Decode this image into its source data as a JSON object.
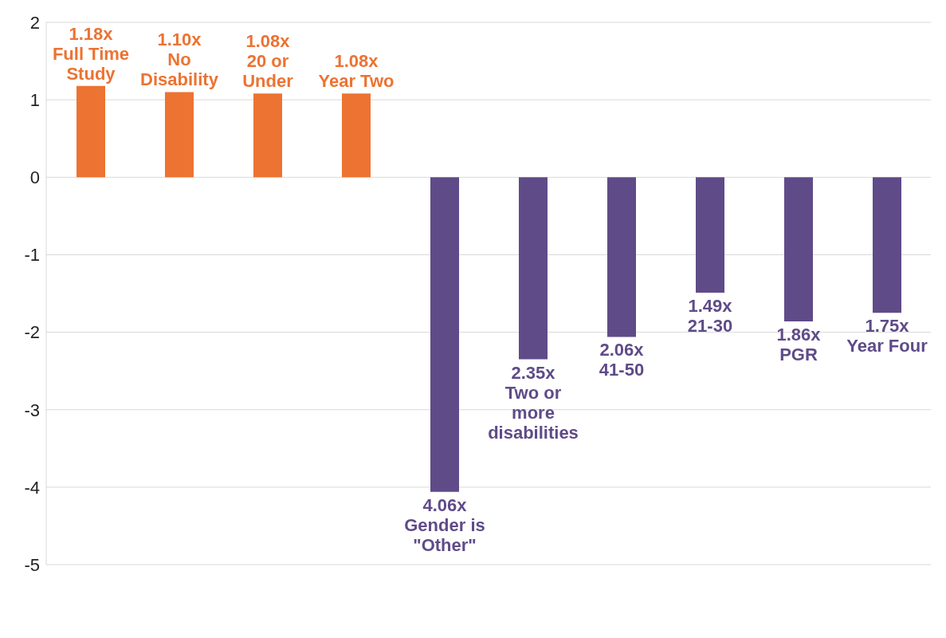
{
  "chart_data": {
    "type": "bar",
    "categories": [
      "Full Time Study",
      "No Disability",
      "20 or Under",
      "Year Two",
      "Gender is \"Other\"",
      "Two or more disabilities",
      "41-50",
      "21-30",
      "PGR",
      "Year Four"
    ],
    "values": [
      1.18,
      1.1,
      1.08,
      1.08,
      -4.06,
      -2.35,
      -2.06,
      -1.49,
      -1.86,
      -1.75
    ],
    "colors": [
      "#ec7332",
      "#ec7332",
      "#ec7332",
      "#ec7332",
      "#5f4b88",
      "#5f4b88",
      "#5f4b88",
      "#5f4b88",
      "#5f4b88",
      "#5f4b88"
    ],
    "annotations": [
      {
        "text": "1.18x",
        "x": "Full Time Study",
        "y": 1.18
      },
      {
        "text": "1.10x",
        "x": "No Disability",
        "y": 1.1
      },
      {
        "text": "1.08x",
        "x": "20 or Under",
        "y": 1.08
      },
      {
        "text": "1.08x",
        "x": "Year Two",
        "y": 1.08
      },
      {
        "text": "4.06x",
        "x": "Gender is \"Other\"",
        "y": -4.06
      },
      {
        "text": "2.35x",
        "x": "Two or more disabilities",
        "y": -2.35
      },
      {
        "text": "2.06x",
        "x": "41-50",
        "y": -2.06
      },
      {
        "text": "1.49x",
        "x": "21-30",
        "y": -1.49
      },
      {
        "text": "1.86x",
        "x": "PGR",
        "y": -1.86
      },
      {
        "text": "1.75x",
        "x": "Year Four",
        "y": -1.75
      }
    ],
    "ylim": [
      -5,
      2
    ],
    "yticks": [
      -5,
      -4,
      -3,
      -2,
      -1,
      0,
      1,
      2
    ],
    "grid": "y"
  }
}
